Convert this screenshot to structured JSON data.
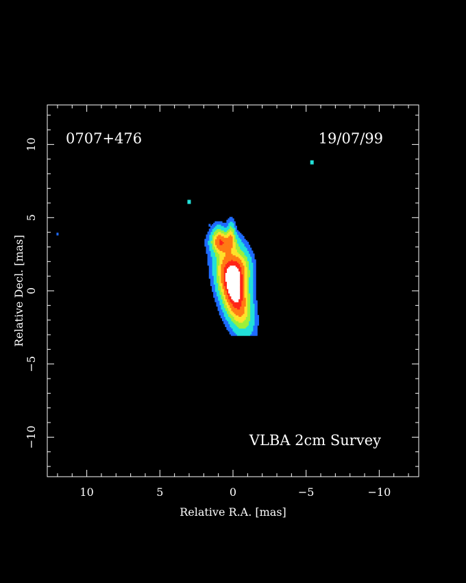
{
  "chart_data": {
    "type": "heatmap",
    "source_name": "0707+476",
    "epoch": "19/07/99",
    "survey_label": "VLBA 2cm Survey",
    "xlabel": "Relative R.A. [mas]",
    "ylabel": "Relative Decl. [mas]",
    "xlim": [
      12.7,
      -12.7
    ],
    "ylim": [
      -12.7,
      12.7
    ],
    "x_ticks": [
      {
        "value": 10,
        "label": "10"
      },
      {
        "value": 5,
        "label": "5"
      },
      {
        "value": 0,
        "label": "0"
      },
      {
        "value": -5,
        "label": "−5"
      },
      {
        "value": -10,
        "label": "−10"
      }
    ],
    "y_ticks": [
      {
        "value": 10,
        "label": "10"
      },
      {
        "value": 5,
        "label": "5"
      },
      {
        "value": 0,
        "label": "0"
      },
      {
        "value": -5,
        "label": "−5"
      },
      {
        "value": -10,
        "label": "−10"
      }
    ],
    "colors": {
      "background": "#000000",
      "low": "#1e6bff",
      "cyan": "#22e0d8",
      "green": "#9cf03a",
      "yellow": "#ffe22a",
      "orange": "#ff7a14",
      "red": "#ff2418",
      "peak": "#ffffff"
    },
    "components": [
      {
        "x": 0.0,
        "y": 0.1,
        "sx": 0.55,
        "sy": 1.6,
        "flux": 1.0,
        "rot_deg": -15
      },
      {
        "x": -0.3,
        "y": 1.5,
        "sx": 0.55,
        "sy": 0.9,
        "flux": 0.55,
        "rot_deg": 0
      },
      {
        "x": 0.6,
        "y": 3.3,
        "sx": 0.55,
        "sy": 0.45,
        "flux": 0.42,
        "rot_deg": 0
      },
      {
        "x": 1.0,
        "y": 3.6,
        "sx": 0.3,
        "sy": 0.55,
        "flux": 0.3,
        "rot_deg": 0
      },
      {
        "x": 0.15,
        "y": 3.9,
        "sx": 0.18,
        "sy": 0.55,
        "flux": 0.3,
        "rot_deg": 0
      }
    ],
    "isolated_spots": [
      {
        "x": 3.0,
        "y": 6.1,
        "level": "cyan"
      },
      {
        "x": -5.4,
        "y": 8.8,
        "level": "cyan"
      },
      {
        "x": 12.0,
        "y": 3.9,
        "level": "low"
      },
      {
        "x": 1.6,
        "y": 4.5,
        "level": "low"
      }
    ]
  }
}
